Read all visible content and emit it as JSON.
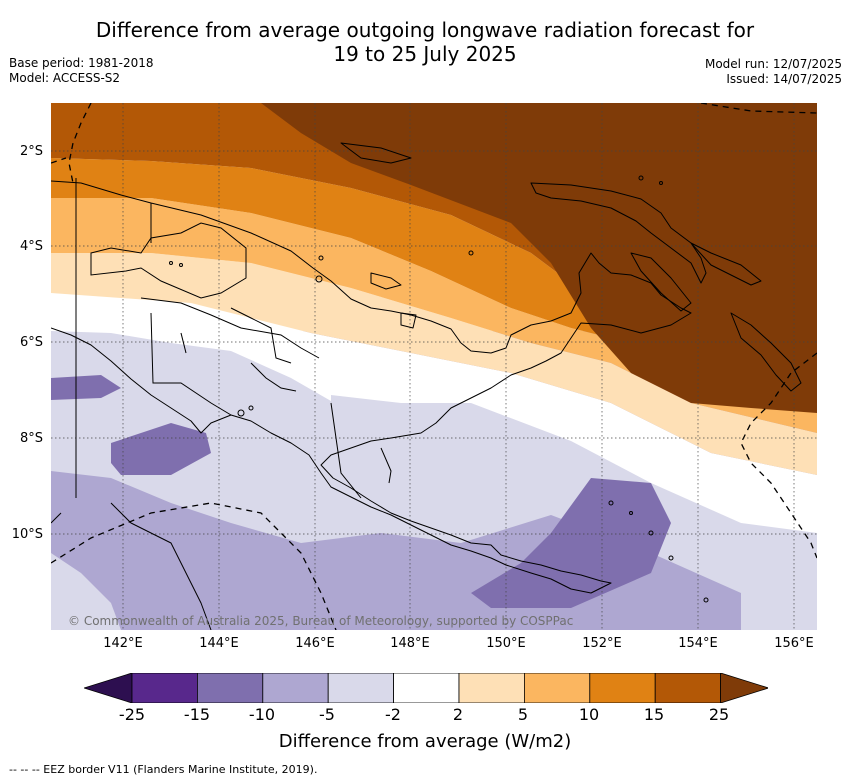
{
  "title_line1": "Difference from average outgoing longwave radiation forecast for",
  "title_line2": "19 to 25 July 2025",
  "base_period": "Base period: 1981-2018",
  "model": "Model: ACCESS-S2",
  "model_run": "Model run: 12/07/2025",
  "issued": "Issued: 14/07/2025",
  "lat_labels": [
    "2°S",
    "4°S",
    "6°S",
    "8°S",
    "10°S"
  ],
  "lon_labels": [
    "142°E",
    "144°E",
    "146°E",
    "148°E",
    "150°E",
    "152°E",
    "154°E",
    "156°E"
  ],
  "copyright": "© Commonwealth of Australia 2025, Bureau of Meteorology, supported by COSPPac",
  "colorbar": {
    "ticks": [
      "-25",
      "-15",
      "-10",
      "-5",
      "-2",
      "2",
      "5",
      "10",
      "15",
      "25"
    ],
    "colors": [
      "#2d0f50",
      "#58288c",
      "#7f6fae",
      "#aea7d1",
      "#d9d9ea",
      "#ffffff",
      "#fee0b6",
      "#fbb660",
      "#e08214",
      "#b35806",
      "#7f3b08"
    ],
    "title": "Difference from average (W/m2)"
  },
  "footnote": "--  --  -- EEZ border V11 (Flanders Marine Institute, 2019)."
}
